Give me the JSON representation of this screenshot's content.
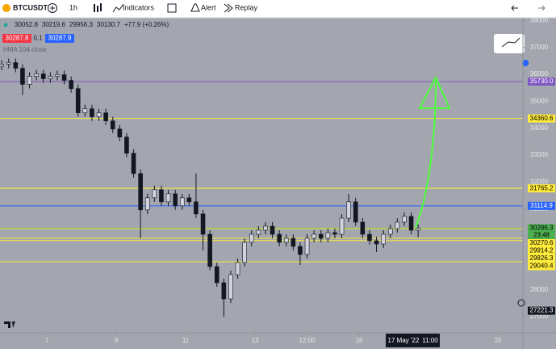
{
  "toolbar": {
    "symbol": "BTCUSDT",
    "interval": "1h",
    "indicators": "Indicators",
    "alert": "Alert",
    "replay": "Replay"
  },
  "legend": {
    "ohlc": [
      "30052.8",
      "30219.6",
      "29956.3",
      "30130.7"
    ],
    "change": "+77.9 (+0.26%)",
    "sell": "30287.8",
    "spread": "0.1",
    "buy": "30287.9",
    "indicator": "HMA 104 close"
  },
  "chart_data": {
    "type": "candlestick",
    "x": [
      5.7,
      5.9,
      6.1,
      6.3,
      6.5,
      6.7,
      6.9,
      7.1,
      7.3,
      7.5,
      7.7,
      7.9,
      8.1,
      8.3,
      8.5,
      8.7,
      8.9,
      9.1,
      9.3,
      9.5,
      9.7,
      9.9,
      10.1,
      10.3,
      10.5,
      10.7,
      10.9,
      11.1,
      11.3,
      11.5,
      11.7,
      11.9,
      12.1,
      12.3,
      12.5,
      12.7,
      12.9,
      13.1,
      13.3,
      13.5,
      13.7,
      13.9,
      14.1,
      14.3,
      14.5,
      14.7,
      14.9,
      15.1,
      15.3,
      15.5,
      15.7,
      15.9,
      16.1,
      16.3,
      16.5,
      16.7,
      16.9,
      17.1,
      17.3,
      17.5,
      17.7
    ],
    "open": [
      36300,
      36375,
      36435,
      36225,
      35625,
      35925,
      36015,
      35835,
      35925,
      35985,
      35775,
      35470,
      34570,
      34720,
      34420,
      34570,
      34270,
      33970,
      33670,
      33070,
      32315,
      30965,
      31415,
      31715,
      31265,
      31565,
      31115,
      31415,
      31265,
      30815,
      30060,
      28860,
      28260,
      27660,
      28560,
      29010,
      29760,
      30060,
      30210,
      30360,
      30060,
      29760,
      29910,
      29610,
      29310,
      29910,
      30060,
      29910,
      30120,
      30060,
      30660,
      31265,
      30510,
      30060,
      29820,
      29700,
      30060,
      30270,
      30510,
      30725,
      30210
    ],
    "high": [
      36525,
      36585,
      36585,
      36375,
      36075,
      36165,
      36165,
      36075,
      36135,
      36135,
      35925,
      35620,
      34870,
      34870,
      34720,
      34720,
      34420,
      34120,
      33820,
      33220,
      32465,
      31565,
      31865,
      31865,
      31715,
      31715,
      31565,
      31565,
      32315,
      30965,
      30210,
      29010,
      28410,
      28710,
      29160,
      29910,
      30210,
      30360,
      30510,
      30510,
      30210,
      30060,
      30060,
      29760,
      30060,
      30210,
      30210,
      30270,
      30270,
      30810,
      31565,
      31415,
      30660,
      30210,
      29970,
      30210,
      30420,
      30660,
      30875,
      30875,
      30436
    ],
    "low": [
      36150,
      36225,
      36075,
      35230,
      35475,
      35775,
      35685,
      35685,
      35775,
      35625,
      35320,
      34420,
      34420,
      34270,
      34270,
      34120,
      33820,
      33520,
      32920,
      32165,
      29910,
      30815,
      31265,
      31115,
      31115,
      30965,
      30965,
      31115,
      30665,
      29460,
      28710,
      28110,
      26995,
      27510,
      28410,
      28860,
      29610,
      29910,
      30060,
      29910,
      29610,
      29610,
      29460,
      28920,
      29160,
      29760,
      29760,
      29760,
      29910,
      29910,
      30510,
      30360,
      29910,
      29670,
      29400,
      29550,
      29910,
      30120,
      30360,
      30060,
      29950
    ],
    "close": [
      36375,
      36435,
      36225,
      35625,
      35925,
      36015,
      35835,
      35925,
      35985,
      35775,
      35470,
      34570,
      34720,
      34420,
      34570,
      34270,
      33970,
      33670,
      33070,
      32315,
      30965,
      31415,
      31715,
      31265,
      31565,
      31115,
      31415,
      31265,
      30815,
      30060,
      28860,
      28260,
      27660,
      28560,
      29010,
      29760,
      30060,
      30210,
      30360,
      30060,
      29760,
      29910,
      29610,
      29310,
      29910,
      30060,
      29910,
      30120,
      30060,
      30660,
      31265,
      30510,
      30060,
      29820,
      29700,
      30060,
      30270,
      30510,
      30725,
      30210,
      30286
    ],
    "up_color": "#d1d4dc",
    "down_color": "#131722",
    "xlim": [
      5.65,
      20.72
    ],
    "xticks": [
      7,
      9,
      11,
      13,
      {
        "value": 14.5,
        "label": "12:00"
      },
      16,
      20
    ],
    "ylim": [
      26400,
      38100
    ],
    "yticks": [
      27000,
      28000,
      29000,
      30000,
      31000,
      32000,
      33000,
      34000,
      35000,
      36000,
      37000,
      38000
    ],
    "grid": false,
    "levels": [
      {
        "value": 35730,
        "label": "35730.0",
        "color": "#7e57c2",
        "text_color": "#ffffff",
        "line": true
      },
      {
        "value": 34360.6,
        "label": "34360.6",
        "color": "#ffeb3b",
        "text_color": "#000000",
        "line": true
      },
      {
        "value": 31765.2,
        "label": "31765.2",
        "color": "#ffeb3b",
        "text_color": "#000000",
        "line": true
      },
      {
        "value": 31114.9,
        "label": "31114.9",
        "color": "#2962ff",
        "text_color": "#ffffff",
        "line": true
      },
      {
        "value": 30286.3,
        "label": "30286.3",
        "color": "#4caf50",
        "text_color": "#000000",
        "line": true
      },
      {
        "value": 30270.6,
        "label": "30270.6",
        "color": "#ffeb3b",
        "text_color": "#000000",
        "line": true
      },
      {
        "value": 29914.2,
        "label": "29914.2",
        "color": "#ffeb3b",
        "text_color": "#000000",
        "line": true
      },
      {
        "value": 29826.3,
        "label": "29826.3",
        "color": "#ffeb3b",
        "text_color": "#000000",
        "line": true
      },
      {
        "value": 29040.4,
        "label": "29040.4",
        "color": "#ffeb3b",
        "text_color": "#000000",
        "line": true
      },
      {
        "value": 27221.3,
        "label": "27221.3",
        "color": "#131722",
        "text_color": "#ffffff",
        "line": false
      }
    ],
    "countdown": "23:48",
    "date_label": "17 May '22",
    "time_label": "11:00"
  }
}
